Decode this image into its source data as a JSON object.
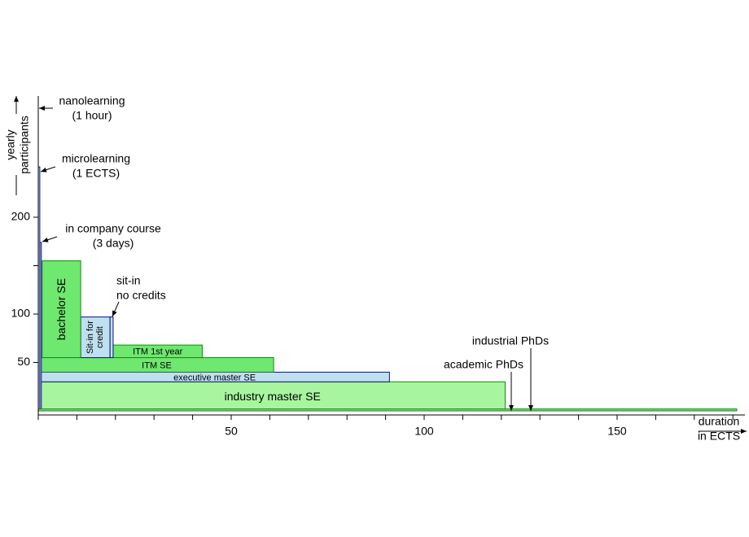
{
  "chart_data": {
    "type": "blocks",
    "x_label": [
      "duration",
      "in ECTS"
    ],
    "y_label": [
      "yearly",
      "participants"
    ],
    "xlim": [
      0,
      182
    ],
    "ylim": [
      0,
      323
    ],
    "xticks": [
      0,
      {
        "value": 10,
        "label": null
      },
      {
        "value": 20,
        "label": null
      },
      {
        "value": 30,
        "label": null
      },
      {
        "value": 40,
        "label": null
      },
      50,
      {
        "value": 60,
        "label": null
      },
      {
        "value": 70,
        "label": null
      },
      {
        "value": 80,
        "label": null
      },
      {
        "value": 90,
        "label": null
      },
      100,
      {
        "value": 110,
        "label": null
      },
      {
        "value": 120,
        "label": null
      },
      {
        "value": 130,
        "label": null
      },
      {
        "value": 140,
        "label": null
      },
      150,
      {
        "value": 160,
        "label": null
      },
      {
        "value": 170,
        "label": null
      },
      {
        "value": 180,
        "label": null
      }
    ],
    "yticks": [
      50,
      100,
      {
        "value": 150,
        "label": null
      },
      200
    ],
    "blocks": [
      {
        "label": "industry master SE",
        "x": [
          0.4,
          121
        ],
        "y": [
          0,
          30
        ],
        "color": "#a8f5a0",
        "stroke": "#208020"
      },
      {
        "label": "executive master SE",
        "x": [
          0.4,
          91
        ],
        "y": [
          30,
          40
        ],
        "color": "#bfe0f0",
        "stroke": "#101080"
      },
      {
        "label": "ITM SE",
        "x": [
          0.4,
          61
        ],
        "y": [
          40,
          55
        ],
        "color": "#6ee86e",
        "stroke": "#208020"
      },
      {
        "label": "ITM 1st year",
        "x": [
          19.4,
          42.5
        ],
        "y": [
          55,
          68
        ],
        "color": "#6ee86e",
        "stroke": "#208020"
      },
      {
        "label": [
          "Sit-in for",
          "credit"
        ],
        "x": [
          11,
          18.6
        ],
        "y": [
          55,
          97
        ],
        "color": "#bfe0f0",
        "stroke": "#101080"
      },
      {
        "x": [
          18.6,
          19.4
        ],
        "y": [
          55,
          97
        ],
        "color": "#bfe0f0",
        "stroke": "#101080"
      },
      {
        "label": "bachelor SE",
        "x": [
          1,
          11
        ],
        "y": [
          55,
          155
        ],
        "color": "#6ee86e",
        "stroke": "#208020"
      },
      {
        "x": [
          0.4,
          0.8
        ],
        "y": [
          0,
          174
        ],
        "color": "#bfe0f0",
        "stroke": "#101080"
      },
      {
        "x": [
          0,
          0.4
        ],
        "y": [
          0,
          252
        ],
        "color": "#bfe0f0",
        "stroke": "#101080"
      },
      {
        "x": [
          0,
          181
        ],
        "y": [
          0,
          2
        ],
        "color": "#6ee86e",
        "stroke": "#208020"
      }
    ],
    "annotations": [
      {
        "lines": [
          "nanolearning",
          "(1 hour)"
        ]
      },
      {
        "lines": [
          "microlearning",
          "(1 ECTS)"
        ]
      },
      {
        "lines": [
          "in company course",
          "(3 days)"
        ]
      },
      {
        "lines": [
          "sit-in",
          "no credits"
        ]
      },
      {
        "lines": [
          "industrial PhDs"
        ]
      },
      {
        "lines": [
          "academic PhDs"
        ]
      }
    ]
  }
}
